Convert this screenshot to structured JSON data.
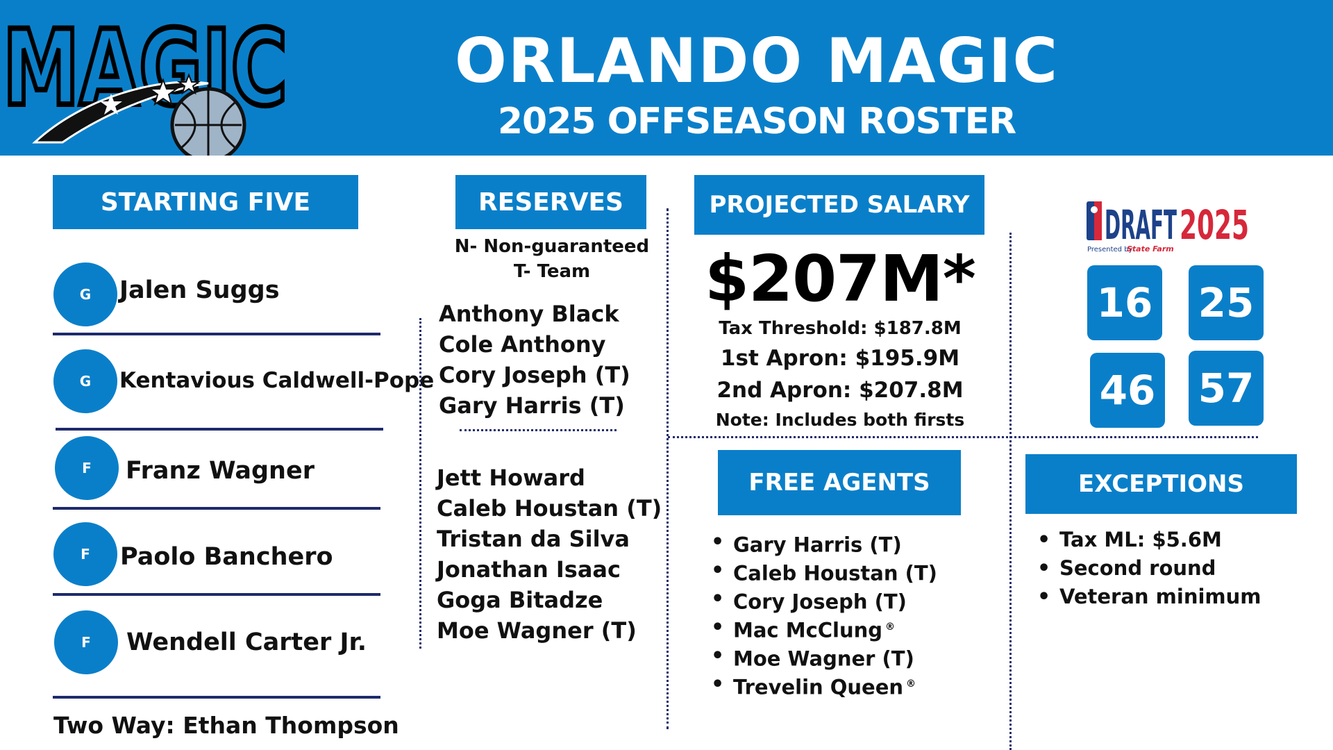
{
  "header": {
    "logo_text": "MAGIC",
    "title": "ORLANDO MAGIC",
    "subtitle": "2025 OFFSEASON ROSTER"
  },
  "starting_five": {
    "heading": "STARTING FIVE",
    "players": [
      {
        "position": "G",
        "name": "Jalen Suggs"
      },
      {
        "position": "G",
        "name": "Kentavious Caldwell-Pope"
      },
      {
        "position": "F",
        "name": "Franz Wagner"
      },
      {
        "position": "F",
        "name": "Paolo Banchero"
      },
      {
        "position": "F",
        "name": "Wendell Carter Jr."
      }
    ],
    "two_way": "Two Way: Ethan Thompson"
  },
  "reserves": {
    "heading": "RESERVES",
    "legend_n": "N- Non-guaranteed",
    "legend_t": "T- Team",
    "group1": [
      "Anthony Black",
      "Cole Anthony",
      "Cory Joseph (T)",
      "Gary Harris (T)"
    ],
    "group2": [
      "Jett Howard",
      "Caleb Houstan (T)",
      "Tristan da Silva",
      "Jonathan Isaac",
      "Goga Bitadze",
      "Moe Wagner (T)"
    ]
  },
  "salary": {
    "heading": "PROJECTED SALARY",
    "amount": "$207M*",
    "tax_threshold": "Tax Threshold: $187.8M",
    "first_apron": "1st Apron: $195.9M",
    "second_apron": "2nd Apron: $207.8M",
    "note": "Note: Includes both firsts"
  },
  "draft": {
    "logo_word": "DRAFT",
    "logo_year": "2025",
    "presented_by": "Presented by",
    "sponsor": "State Farm",
    "picks": [
      "16",
      "25",
      "46",
      "57"
    ]
  },
  "free_agents": {
    "heading": "FREE AGENTS",
    "items": [
      {
        "name": "Gary Harris (T)",
        "mark": ""
      },
      {
        "name": "Caleb Houstan (T)",
        "mark": ""
      },
      {
        "name": "Cory Joseph (T)",
        "mark": ""
      },
      {
        "name": "Mac McClung",
        "mark": "®"
      },
      {
        "name": "Moe Wagner (T)",
        "mark": ""
      },
      {
        "name": "Trevelin Queen",
        "mark": "®"
      }
    ]
  },
  "exceptions": {
    "heading": "EXCEPTIONS",
    "items": [
      "Tax ML: $5.6M",
      "Second round",
      "Veteran minimum"
    ]
  },
  "colors": {
    "brand_blue": "#0a7fc9",
    "navy": "#1f2a6b",
    "draft_red": "#d6283a",
    "draft_navy": "#1d428a"
  }
}
